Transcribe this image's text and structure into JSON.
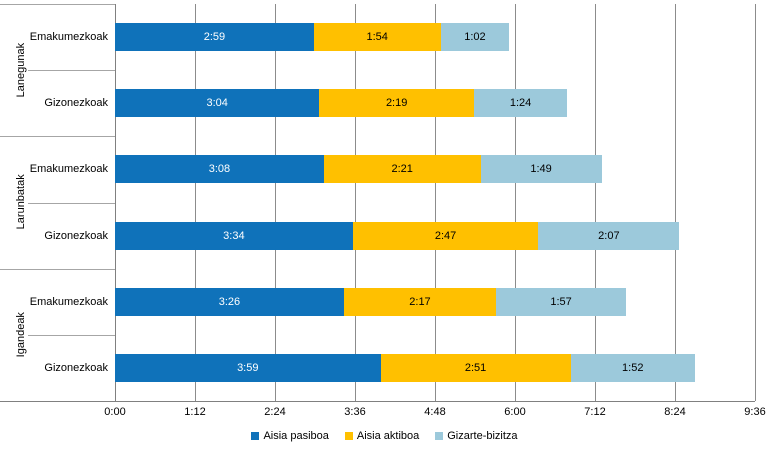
{
  "chart_data": {
    "type": "bar",
    "orientation": "horizontal",
    "stacked": true,
    "title": "",
    "x_axis": {
      "ticks": [
        "0:00",
        "1:12",
        "2:24",
        "3:36",
        "4:48",
        "6:00",
        "7:12",
        "8:24",
        "9:36"
      ],
      "max_minutes": 576,
      "tick_interval_minutes": 72
    },
    "series": [
      {
        "name": "Aisia pasiboa",
        "color": "#0F72BA",
        "label_color": "#FFFFFF"
      },
      {
        "name": "Aisia aktiboa",
        "color": "#FFC000",
        "label_color": "#000000"
      },
      {
        "name": "Gizarte-bizitza",
        "color": "#9CC9DB",
        "label_color": "#000000"
      }
    ],
    "groups": [
      {
        "label": "Lanegunak",
        "rows": [
          {
            "label": "Emakumezkoak",
            "values": [
              "2:59",
              "1:54",
              "1:02"
            ]
          },
          {
            "label": "Gizonezkoak",
            "values": [
              "3:04",
              "2:19",
              "1:24"
            ]
          }
        ]
      },
      {
        "label": "Larunbatak",
        "rows": [
          {
            "label": "Emakumezkoak",
            "values": [
              "3:08",
              "2:21",
              "1:49"
            ]
          },
          {
            "label": "Gizonezkoak",
            "values": [
              "3:34",
              "2:47",
              "2:07"
            ]
          }
        ]
      },
      {
        "label": "Igandeak",
        "rows": [
          {
            "label": "Emakumezkoak",
            "values": [
              "3:26",
              "2:17",
              "1:57"
            ]
          },
          {
            "label": "Gizonezkoak",
            "values": [
              "3:59",
              "2:51",
              "1:52"
            ]
          }
        ]
      }
    ],
    "legend": {
      "position": "bottom",
      "entries": [
        "Aisia pasiboa",
        "Aisia aktiboa",
        "Gizarte-bizitza"
      ]
    },
    "grid": true
  },
  "colors": {
    "background": "#FFFFFF",
    "gridline": "#8C8C8C",
    "axis_line": "#808080",
    "divider": "#A6A6A6",
    "text": "#000000"
  }
}
